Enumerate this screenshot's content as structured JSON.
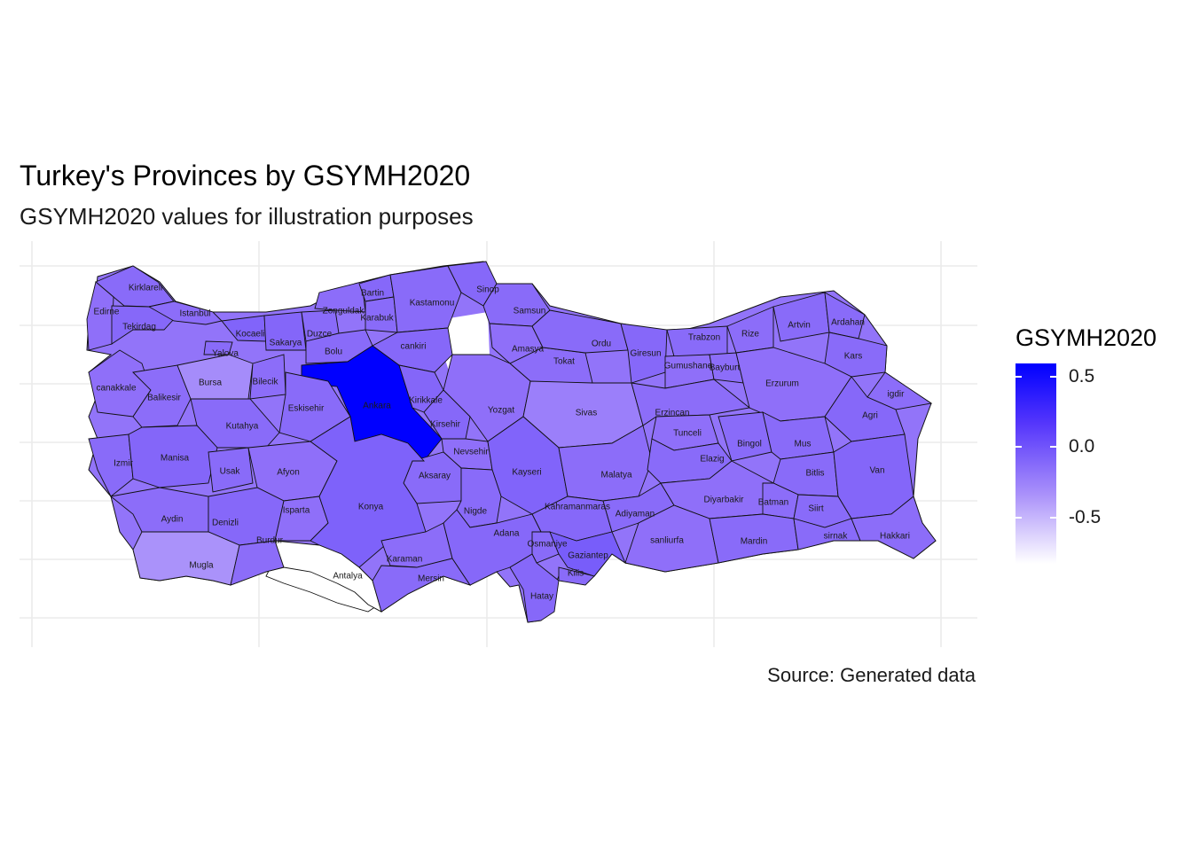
{
  "title": "Turkey's Provinces by GSYMH2020",
  "subtitle": "GSYMH2020 values for illustration purposes",
  "caption": "Source: Generated data",
  "colors": {
    "high": "#0000ff",
    "mid": "#8f6ff9",
    "low": "#ffffff",
    "missing": "#ffffff",
    "grid": "#ebebeb",
    "border": "#111111"
  },
  "legend": {
    "title": "GSYMH2020",
    "ticks": [
      "0.5",
      "0.0",
      "-0.5"
    ]
  },
  "map": {
    "fill_variable": "GSYMH2020",
    "provinces": [
      {
        "name": "Kirklareli",
        "value": 0.12
      },
      {
        "name": "Edirne",
        "value": 0.1
      },
      {
        "name": "Tekirdag",
        "value": 0.13
      },
      {
        "name": "Istanbul",
        "value": 0.11
      },
      {
        "name": "Kocaeli",
        "value": 0.15
      },
      {
        "name": "Yalova",
        "value": 0.12
      },
      {
        "name": "Sakarya",
        "value": 0.14
      },
      {
        "name": "Duzce",
        "value": 0.12
      },
      {
        "name": "Zonguldak",
        "value": 0.11
      },
      {
        "name": "Bartin",
        "value": 0.13
      },
      {
        "name": "Karabuk",
        "value": 0.12
      },
      {
        "name": "Kastamonu",
        "value": 0.12
      },
      {
        "name": "Sinop",
        "value": 0.13
      },
      {
        "name": "Samsun",
        "value": 0.12
      },
      {
        "name": "Bolu",
        "value": 0.12
      },
      {
        "name": "cankiri",
        "value": 0.13
      },
      {
        "name": "Ankara",
        "value": 0.6
      },
      {
        "name": "Kirikkale",
        "value": 0.14
      },
      {
        "name": "Amasya",
        "value": 0.1
      },
      {
        "name": "Tokat",
        "value": 0.11
      },
      {
        "name": "Ordu",
        "value": 0.12
      },
      {
        "name": "Giresun",
        "value": 0.13
      },
      {
        "name": "Trabzon",
        "value": 0.12
      },
      {
        "name": "Rize",
        "value": 0.11
      },
      {
        "name": "Artvin",
        "value": 0.12
      },
      {
        "name": "Ardahan",
        "value": 0.12
      },
      {
        "name": "Gumushane",
        "value": 0.1
      },
      {
        "name": "Bayburt",
        "value": 0.11
      },
      {
        "name": "Kars",
        "value": 0.12
      },
      {
        "name": "Erzurum",
        "value": 0.1
      },
      {
        "name": "igdir",
        "value": 0.11
      },
      {
        "name": "Agri",
        "value": 0.13
      },
      {
        "name": "canakkale",
        "value": 0.1
      },
      {
        "name": "Balikesir",
        "value": 0.11
      },
      {
        "name": "Bursa",
        "value": -0.08
      },
      {
        "name": "Bilecik",
        "value": 0.11
      },
      {
        "name": "Eskisehir",
        "value": 0.12
      },
      {
        "name": "Kutahya",
        "value": 0.12
      },
      {
        "name": "Yozgat",
        "value": 0.1
      },
      {
        "name": "Sivas",
        "value": 0.0
      },
      {
        "name": "Erzincan",
        "value": 0.11
      },
      {
        "name": "Tunceli",
        "value": 0.1
      },
      {
        "name": "Bingol",
        "value": 0.12
      },
      {
        "name": "Mus",
        "value": 0.12
      },
      {
        "name": "Kirsehir",
        "value": 0.13
      },
      {
        "name": "Nevsehir",
        "value": 0.1
      },
      {
        "name": "Izmir",
        "value": 0.12
      },
      {
        "name": "Manisa",
        "value": 0.14
      },
      {
        "name": "Usak",
        "value": 0.12
      },
      {
        "name": "Afyon",
        "value": 0.1
      },
      {
        "name": "Aksaray",
        "value": 0.12
      },
      {
        "name": "Kayseri",
        "value": 0.15
      },
      {
        "name": "Malatya",
        "value": 0.11
      },
      {
        "name": "Elazig",
        "value": 0.12
      },
      {
        "name": "Bitlis",
        "value": 0.12
      },
      {
        "name": "Van",
        "value": 0.14
      },
      {
        "name": "Aydin",
        "value": 0.11
      },
      {
        "name": "Denizli",
        "value": 0.13
      },
      {
        "name": "Isparta",
        "value": 0.1
      },
      {
        "name": "Konya",
        "value": 0.16
      },
      {
        "name": "Nigde",
        "value": 0.12
      },
      {
        "name": "Kahramanmaras",
        "value": 0.13
      },
      {
        "name": "Adiyaman",
        "value": 0.12
      },
      {
        "name": "Diyarbakir",
        "value": 0.1
      },
      {
        "name": "Batman",
        "value": 0.11
      },
      {
        "name": "Siirt",
        "value": 0.12
      },
      {
        "name": "Mugla",
        "value": -0.12
      },
      {
        "name": "Burdur",
        "value": 0.11
      },
      {
        "name": "Antalya",
        "value": null
      },
      {
        "name": "Karaman",
        "value": 0.11
      },
      {
        "name": "Mersin",
        "value": 0.12
      },
      {
        "name": "Adana",
        "value": 0.13
      },
      {
        "name": "Osmaniye",
        "value": 0.12
      },
      {
        "name": "Gaziantep",
        "value": 0.18
      },
      {
        "name": "Kilis",
        "value": 0.12
      },
      {
        "name": "Hatay",
        "value": 0.13
      },
      {
        "name": "sanliurfa",
        "value": 0.1
      },
      {
        "name": "Mardin",
        "value": 0.12
      },
      {
        "name": "sirnak",
        "value": 0.12
      },
      {
        "name": "Hakkari",
        "value": 0.11
      }
    ]
  }
}
